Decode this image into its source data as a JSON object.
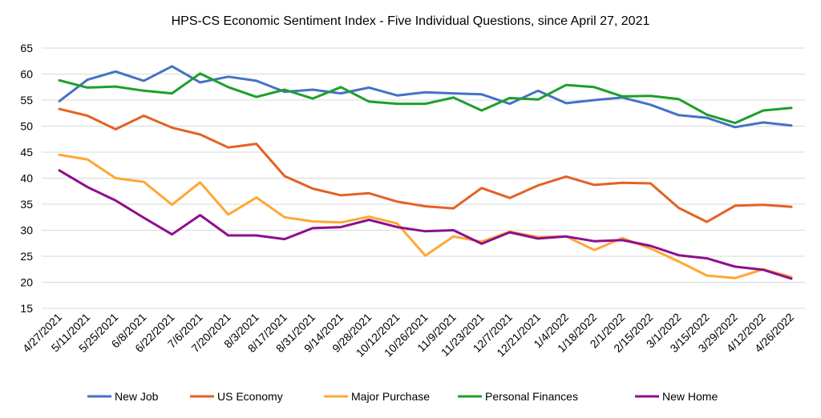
{
  "chart_data": {
    "type": "line",
    "title": "HPS-CS Economic Sentiment Index - Five Individual Questions, since April 27, 2021",
    "xlabel": "",
    "ylabel": "",
    "ylim": [
      15,
      65
    ],
    "yticks": [
      15,
      20,
      25,
      30,
      35,
      40,
      45,
      50,
      55,
      60,
      65
    ],
    "grid": "horizontal",
    "legend_position": "bottom",
    "x": [
      "4/27/2021",
      "5/11/2021",
      "5/25/2021",
      "6/8/2021",
      "6/22/2021",
      "7/6/2021",
      "7/20/2021",
      "8/3/2021",
      "8/17/2021",
      "8/31/2021",
      "9/14/2021",
      "9/28/2021",
      "10/12/2021",
      "10/26/2021",
      "11/9/2021",
      "11/23/2021",
      "12/7/2021",
      "12/21/2021",
      "1/4/2022",
      "1/18/2022",
      "2/1/2022",
      "2/15/2022",
      "3/1/2022",
      "3/15/2022",
      "3/29/2022",
      "4/12/2022",
      "4/26/2022"
    ],
    "series": [
      {
        "name": "New Job",
        "color": "#4472C4",
        "values": [
          54.8,
          58.9,
          60.5,
          58.7,
          61.5,
          58.4,
          59.5,
          58.7,
          56.6,
          57.0,
          56.3,
          57.4,
          55.9,
          56.5,
          56.3,
          56.1,
          54.3,
          56.8,
          54.4,
          55.0,
          55.5,
          54.1,
          52.1,
          51.6,
          49.8,
          50.7,
          50.1
        ]
      },
      {
        "name": "US Economy",
        "color": "#E46125",
        "values": [
          53.3,
          52.0,
          49.4,
          52.0,
          49.7,
          48.4,
          45.9,
          46.6,
          40.4,
          38.0,
          36.7,
          37.1,
          35.5,
          34.6,
          34.2,
          38.1,
          36.2,
          38.6,
          40.3,
          38.7,
          39.1,
          39.0,
          34.3,
          31.6,
          34.7,
          34.9,
          34.5
        ]
      },
      {
        "name": "Major Purchase",
        "color": "#FFA733",
        "values": [
          44.5,
          43.6,
          40.0,
          39.3,
          34.9,
          39.2,
          33.0,
          36.3,
          32.5,
          31.7,
          31.5,
          32.6,
          31.3,
          25.1,
          28.8,
          27.8,
          29.7,
          28.7,
          28.8,
          26.2,
          28.5,
          26.5,
          24.0,
          21.3,
          20.8,
          22.5,
          21.0
        ]
      },
      {
        "name": "Personal Finances",
        "color": "#1D9F2A",
        "values": [
          58.8,
          57.4,
          57.6,
          56.8,
          56.3,
          60.1,
          57.5,
          55.6,
          57.0,
          55.3,
          57.5,
          54.7,
          54.3,
          54.3,
          55.5,
          53.0,
          55.4,
          55.1,
          57.9,
          57.5,
          55.7,
          55.8,
          55.2,
          52.2,
          50.6,
          53.0,
          53.5
        ]
      },
      {
        "name": "New Home",
        "color": "#8E0E8E",
        "values": [
          41.5,
          38.3,
          35.7,
          32.4,
          29.2,
          32.9,
          29.0,
          29.0,
          28.3,
          30.4,
          30.6,
          32.0,
          30.6,
          29.8,
          30.0,
          27.4,
          29.6,
          28.4,
          28.8,
          27.9,
          28.1,
          27.0,
          25.2,
          24.6,
          23.0,
          22.4,
          20.7
        ]
      }
    ]
  }
}
